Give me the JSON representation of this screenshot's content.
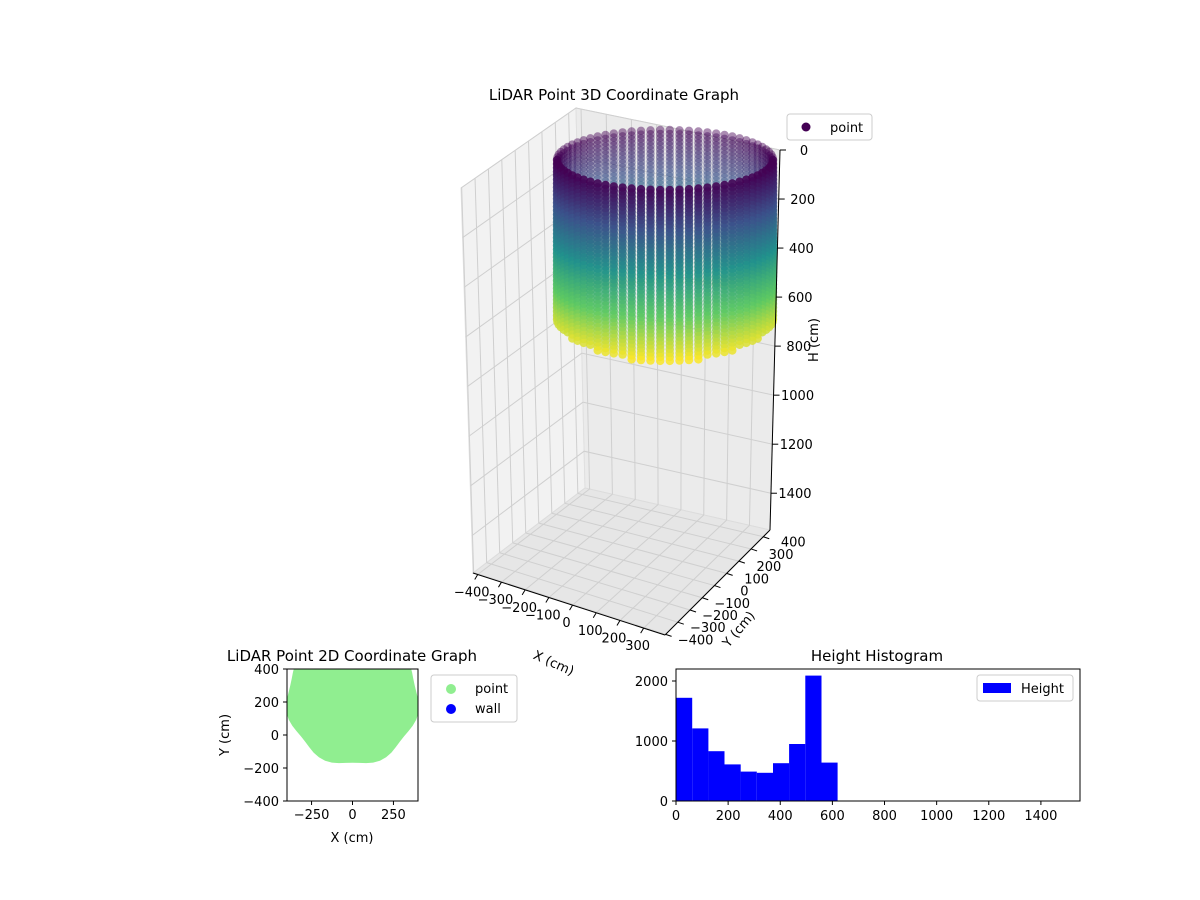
{
  "chart_data": [
    {
      "type": "scatter",
      "title": "LiDAR Point 3D Coordinate Graph",
      "projection": "3d",
      "xlabel": "X (cm)",
      "ylabel": "Y (cm)",
      "zlabel": "H (cm)",
      "xticks": [
        "−400",
        "−300",
        "−200",
        "−100",
        "0",
        "100",
        "200",
        "300"
      ],
      "yticks": [
        "−400",
        "−300",
        "−200",
        "−100",
        "0",
        "100",
        "200",
        "300",
        "400"
      ],
      "zticks": [
        "0",
        "200",
        "400",
        "600",
        "800",
        "1000",
        "1200",
        "1400"
      ],
      "zlim": [
        0,
        1550
      ],
      "z_inverted": true,
      "legend": [
        "point"
      ],
      "legend_position": "upper-right",
      "colormap": "viridis",
      "colormap_stops": [
        "#440154",
        "#3b528b",
        "#21918c",
        "#5ec962",
        "#fde725"
      ],
      "series": [
        {
          "name": "point",
          "shape": "vertical cylinder of scan rings",
          "radius": 380,
          "center": [
            0,
            0
          ],
          "h_range": [
            0,
            620
          ]
        }
      ]
    },
    {
      "type": "scatter",
      "title": "LiDAR Point 2D Coordinate Graph",
      "xlabel": "X (cm)",
      "ylabel": "Y (cm)",
      "xticks": [
        "−250",
        "0",
        "250"
      ],
      "yticks": [
        "−400",
        "−200",
        "0",
        "200",
        "400"
      ],
      "xlim": [
        -400,
        400
      ],
      "ylim": [
        -400,
        400
      ],
      "legend_position": "outside-right",
      "series": [
        {
          "name": "point",
          "color": "#90ee90",
          "region": "filled disc, r≈400, center (0,220)"
        },
        {
          "name": "wall",
          "color": "#0000ff"
        }
      ]
    },
    {
      "type": "bar",
      "title": "Height Histogram",
      "xticks": [
        "0",
        "200",
        "400",
        "600",
        "800",
        "1000",
        "1200",
        "1400"
      ],
      "yticks": [
        "0",
        "1000",
        "2000"
      ],
      "xlim": [
        0,
        1550
      ],
      "ylim": [
        0,
        2200
      ],
      "legend_position": "upper-right",
      "series": [
        {
          "name": "Height",
          "color": "#0000ff",
          "bin_width": 62,
          "x": [
            0,
            62,
            124,
            186,
            248,
            310,
            372,
            434,
            496,
            558
          ],
          "values": [
            1720,
            1210,
            830,
            610,
            490,
            470,
            630,
            950,
            2090,
            640
          ]
        }
      ]
    }
  ]
}
